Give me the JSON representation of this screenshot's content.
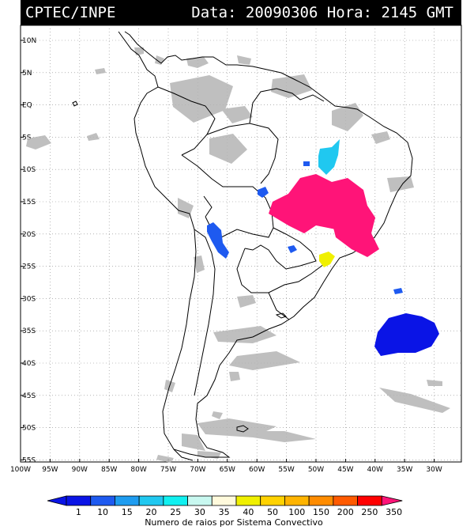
{
  "header": {
    "agency": "CPTEC/INPE",
    "datetime": "Data: 20090306 Hora: 2145 GMT"
  },
  "axes": {
    "lat_labels": [
      "10N",
      "5N",
      "EQ",
      "5S",
      "10S",
      "15S",
      "20S",
      "25S",
      "30S",
      "35S",
      "40S",
      "45S",
      "50S",
      "55S"
    ],
    "lon_labels": [
      "100W",
      "95W",
      "90W",
      "85W",
      "80W",
      "75W",
      "70W",
      "65W",
      "60W",
      "55W",
      "50W",
      "45W",
      "40W",
      "35W",
      "30W"
    ]
  },
  "legend": {
    "title": "Numero de raios por Sistema Convectivo",
    "labels": [
      "1",
      "10",
      "15",
      "20",
      "25",
      "30",
      "35",
      "40",
      "50",
      "100",
      "150",
      "200",
      "250",
      "350"
    ],
    "colors": [
      "#0a14e6",
      "#1e5af0",
      "#1e9cf0",
      "#20c8f0",
      "#10f0f0",
      "#c8f8f0",
      "#fffadc",
      "#f0f000",
      "#ffd200",
      "#ffb400",
      "#ff8c00",
      "#ff5a00",
      "#ff0000",
      "#ff1478"
    ]
  },
  "colors": {
    "cloud": "#b4b4b4",
    "land_outline": "#000000"
  }
}
